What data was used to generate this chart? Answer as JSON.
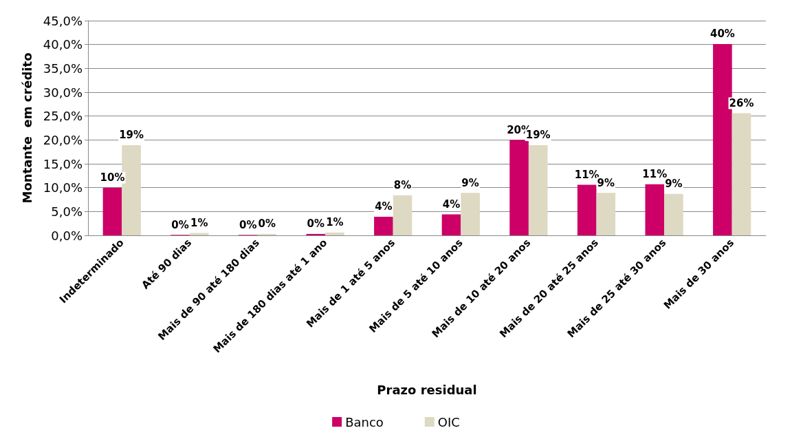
{
  "chart_data": {
    "type": "bar",
    "xlabel": "Prazo residual",
    "ylabel": "Montante  em crédito",
    "categories": [
      "Indeterminado",
      "Até 90 dias",
      "Mais de 90 até 180 dias",
      "Mais de 180 dias até 1 ano",
      "Mais de 1 até 5 anos",
      "Mais de 5 até 10 anos",
      "Mais de 10 até 20 anos",
      "Mais de 20 até 25 anos",
      "Mais de 25 até 30 anos",
      "Mais de 30 anos"
    ],
    "series": [
      {
        "name": "Banco",
        "color": "#cc0066",
        "values": [
          10.0,
          0.1,
          0.1,
          0.3,
          3.9,
          4.4,
          20.0,
          10.6,
          10.7,
          40.1
        ],
        "value_labels": [
          "10%",
          "0%",
          "0%",
          "0%",
          "4%",
          "4%",
          "20%",
          "11%",
          "11%",
          "40%"
        ]
      },
      {
        "name": "OIC",
        "color": "#ddd9c3",
        "values": [
          18.9,
          0.5,
          0.3,
          0.6,
          8.4,
          8.9,
          18.9,
          8.9,
          8.7,
          25.6
        ],
        "value_labels": [
          "19%",
          "1%",
          "0%",
          "1%",
          "8%",
          "9%",
          "19%",
          "9%",
          "9%",
          "26%"
        ]
      }
    ],
    "ylim": [
      0,
      45
    ],
    "yticks": [
      {
        "value": 0,
        "label": "0,0%"
      },
      {
        "value": 5,
        "label": "5,0%"
      },
      {
        "value": 10,
        "label": "10,0%"
      },
      {
        "value": 15,
        "label": "15,0%"
      },
      {
        "value": 20,
        "label": "20,0%"
      },
      {
        "value": 25,
        "label": "25,0%"
      },
      {
        "value": 30,
        "label": "30,0%"
      },
      {
        "value": 35,
        "label": "35,0%"
      },
      {
        "value": 40,
        "label": "40,0%"
      },
      {
        "value": 45,
        "label": "45,0%"
      }
    ],
    "grid": "y",
    "legend": "bottom"
  }
}
